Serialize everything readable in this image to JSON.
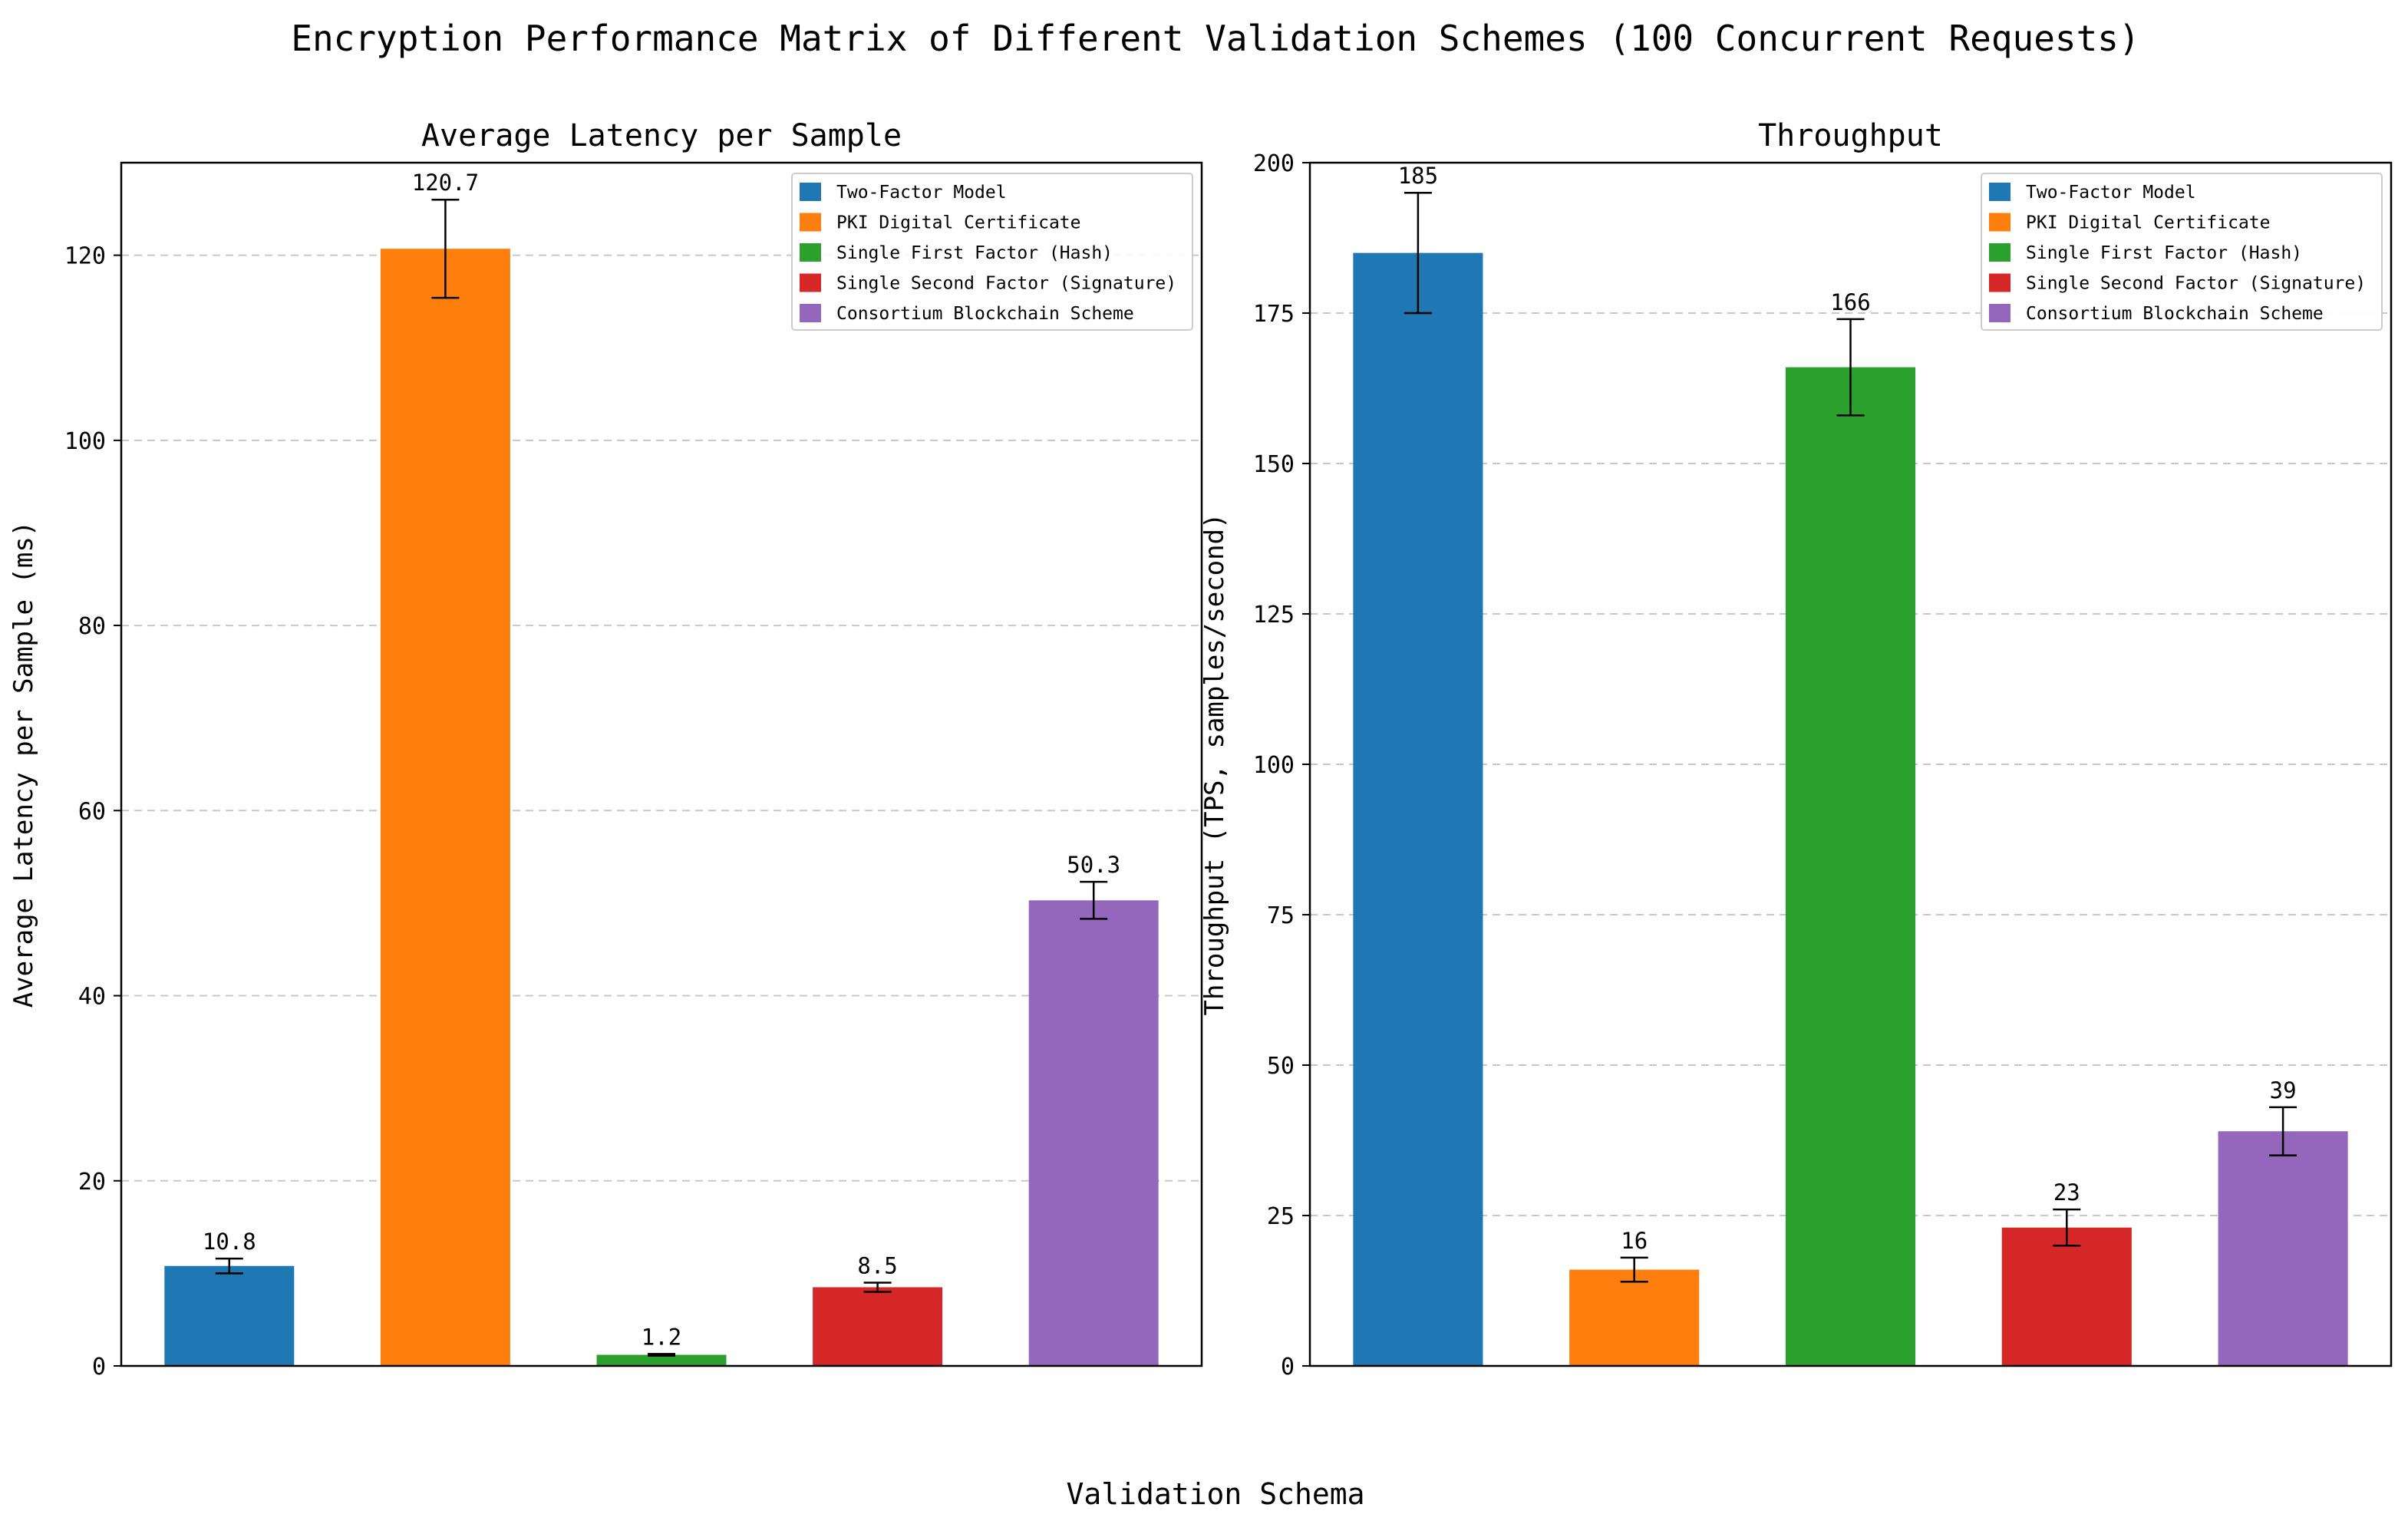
{
  "figure": {
    "suptitle": "Encryption Performance Matrix of Different Validation Schemes (100 Concurrent Requests)",
    "shared_xlabel": "Validation Schema"
  },
  "legend_entries": [
    "Two-Factor Model",
    "PKI Digital Certificate",
    "Single First Factor (Hash)",
    "Single Second Factor (Signature)",
    "Consortium Blockchain Scheme"
  ],
  "colors": [
    "#1f77b4",
    "#ff7f0e",
    "#2ca02c",
    "#d62728",
    "#9467bd"
  ],
  "chart_data": [
    {
      "type": "bar",
      "title": "Average Latency per Sample",
      "xlabel": "",
      "ylabel": "Average Latency per Sample (ms)",
      "ylim": [
        0,
        130
      ],
      "yticks": [
        0,
        20,
        40,
        60,
        80,
        100,
        120
      ],
      "grid": "y-dashed",
      "legend_position": "top-right",
      "categories": [
        "Two-Factor Model",
        "PKI Digital Certificate",
        "Single First Factor (Hash)",
        "Single Second Factor (Signature)",
        "Consortium Blockchain Scheme"
      ],
      "values": [
        10.8,
        120.7,
        1.2,
        8.5,
        50.3
      ],
      "errors": [
        0.8,
        5.3,
        0.1,
        0.5,
        2.0
      ],
      "value_labels": [
        "10.8",
        "120.7",
        "1.2",
        "8.5",
        "50.3"
      ]
    },
    {
      "type": "bar",
      "title": "Throughput",
      "xlabel": "",
      "ylabel": "Throughput (TPS, samples/second)",
      "ylim": [
        0,
        200
      ],
      "yticks": [
        0,
        25,
        50,
        75,
        100,
        125,
        150,
        175,
        200
      ],
      "grid": "y-dashed",
      "legend_position": "top-right",
      "categories": [
        "Two-Factor Model",
        "PKI Digital Certificate",
        "Single First Factor (Hash)",
        "Single Second Factor (Signature)",
        "Consortium Blockchain Scheme"
      ],
      "values": [
        185,
        16,
        166,
        23,
        39
      ],
      "errors": [
        10,
        2,
        8,
        3,
        4
      ],
      "value_labels": [
        "185",
        "16",
        "166",
        "23",
        "39"
      ]
    }
  ]
}
